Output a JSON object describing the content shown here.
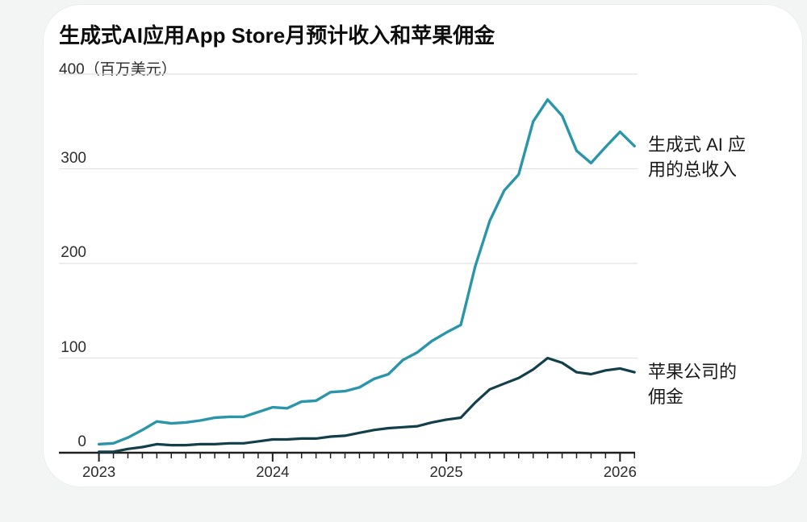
{
  "page": {
    "title": "生成式AI应用App Store月预计收入和苹果佣金"
  },
  "chart_data": {
    "type": "line",
    "title": "生成式AI应用App Store月预计收入和苹果佣金",
    "y_axis": {
      "top_tick": "400",
      "unit": "（百万美元）",
      "tick_values": [
        0,
        100,
        200,
        300,
        400
      ],
      "gridline_ticks": [
        100,
        200,
        300,
        400
      ],
      "label_ticks": [
        0,
        100,
        200,
        300
      ]
    },
    "ylim": [
      0,
      400
    ],
    "x_tick_years": [
      "2023",
      "2024",
      "2025",
      "2026"
    ],
    "grid": "horizontal-only",
    "legend_position": "right-annotations",
    "months": [
      "2023-01",
      "2023-02",
      "2023-03",
      "2023-04",
      "2023-05",
      "2023-06",
      "2023-07",
      "2023-08",
      "2023-09",
      "2023-10",
      "2023-11",
      "2023-12",
      "2024-01",
      "2024-02",
      "2024-03",
      "2024-04",
      "2024-05",
      "2024-06",
      "2024-07",
      "2024-08",
      "2024-09",
      "2024-10",
      "2024-11",
      "2024-12",
      "2025-01",
      "2025-02",
      "2025-03",
      "2025-04",
      "2025-05",
      "2025-06",
      "2025-07",
      "2025-08",
      "2025-09",
      "2025-10",
      "2025-11",
      "2025-12",
      "2026-01",
      "2026-02"
    ],
    "series": [
      {
        "id": "revenue",
        "name": "生成式 AI 应用的总收入",
        "color": "#2b95a9",
        "stroke_width": 3.4,
        "values": [
          9,
          10,
          16,
          24,
          33,
          31,
          32,
          34,
          37,
          38,
          38,
          43,
          48,
          47,
          54,
          55,
          64,
          65,
          69,
          78,
          83,
          98,
          106,
          118,
          127,
          135,
          197,
          245,
          277,
          294,
          350,
          373,
          356,
          319,
          306,
          323,
          339,
          324
        ]
      },
      {
        "id": "commission",
        "name": "苹果公司的佣金",
        "color": "#133f4b",
        "stroke_width": 3.2,
        "values": [
          1,
          1,
          4,
          6,
          9,
          8,
          8,
          9,
          9,
          10,
          10,
          12,
          14,
          14,
          15,
          15,
          17,
          18,
          21,
          24,
          26,
          27,
          28,
          32,
          35,
          37,
          53,
          67,
          73,
          79,
          88,
          100,
          95,
          85,
          83,
          87,
          89,
          85
        ]
      }
    ],
    "annotations": [
      {
        "series": "revenue",
        "lines": "生成式 AI 应\n用的总收入"
      },
      {
        "series": "commission",
        "lines": "苹果公司的\n佣金"
      }
    ],
    "colors": {
      "axis": "#1f1f1f",
      "gridline": "#e2e2e2",
      "text": "#2b2b2b"
    }
  }
}
